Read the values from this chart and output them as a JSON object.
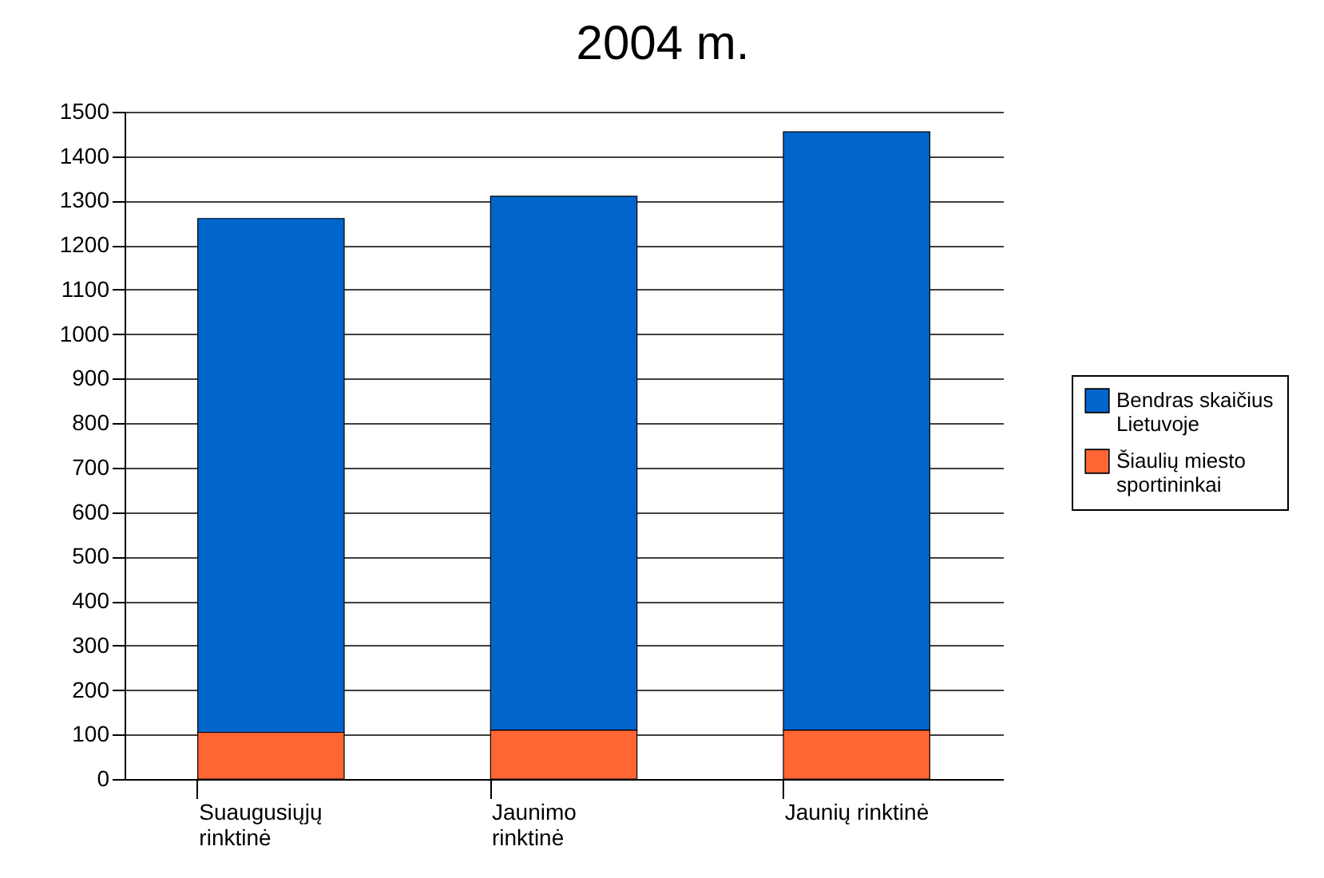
{
  "chart_data": {
    "type": "bar",
    "title": "2004 m.",
    "categories": [
      "Suaugusiųjų rinktinė",
      "Jaunimo rinktinė",
      "Jaunių rinktinė"
    ],
    "stacked": true,
    "series": [
      {
        "name": "Šiaulių miesto sportininkai",
        "color": "#ff6633",
        "values": [
          105,
          110,
          110
        ]
      },
      {
        "name": "Bendras skaičius Lietuvoje",
        "color": "#0066cc",
        "values": [
          1155,
          1200,
          1345
        ]
      }
    ],
    "ylim": [
      0,
      1500
    ],
    "yticks": [
      0,
      100,
      200,
      300,
      400,
      500,
      600,
      700,
      800,
      900,
      1000,
      1100,
      1200,
      1300,
      1400,
      1500
    ],
    "grid": "y",
    "legend": "right"
  }
}
